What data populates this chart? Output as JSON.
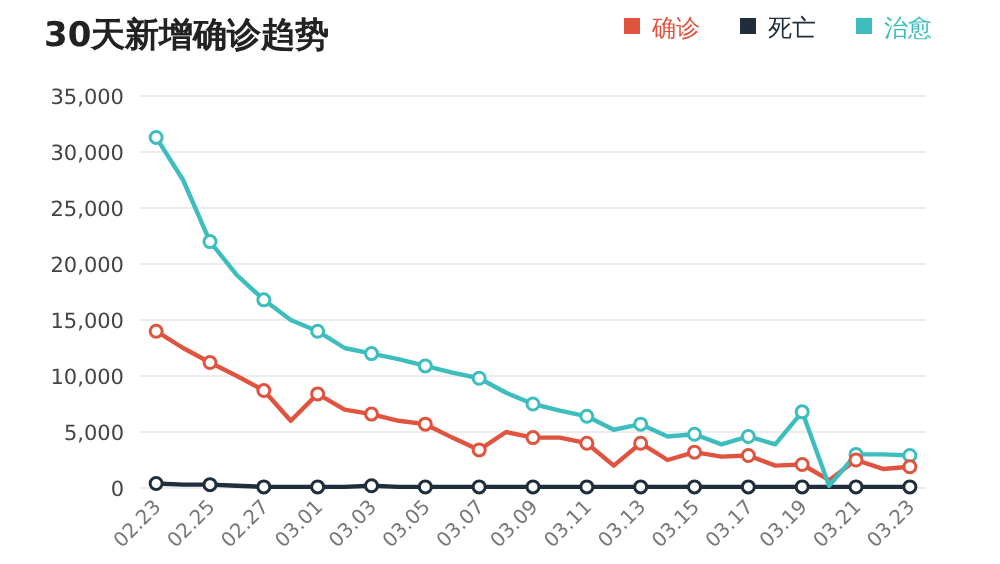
{
  "chart_data": {
    "type": "line",
    "title": "30天新增确诊趋势",
    "categories": [
      "02.23",
      null,
      "02.25",
      null,
      "02.27",
      null,
      "03.01",
      null,
      "03.03",
      null,
      "03.05",
      null,
      "03.07",
      null,
      "03.09",
      null,
      "03.11",
      null,
      "03.13",
      null,
      "03.15",
      null,
      "03.17",
      null,
      "03.19",
      null,
      "03.21",
      null,
      "03.23"
    ],
    "series": [
      {
        "name": "确诊",
        "color": "#e0533e",
        "values": [
          14000,
          12500,
          11200,
          10000,
          8700,
          6000,
          8400,
          7000,
          6600,
          6000,
          5700,
          4500,
          3400,
          5000,
          4500,
          4500,
          4000,
          2000,
          4000,
          2500,
          3200,
          2800,
          2900,
          2000,
          2100,
          700,
          2500,
          1700,
          1900
        ]
      },
      {
        "name": "死亡",
        "color": "#1f2d3d",
        "values": [
          400,
          300,
          300,
          200,
          100,
          100,
          100,
          100,
          200,
          100,
          100,
          100,
          100,
          100,
          100,
          100,
          100,
          100,
          100,
          100,
          100,
          100,
          100,
          100,
          100,
          100,
          100,
          100,
          100
        ]
      },
      {
        "name": "治愈",
        "color": "#3dbdbd",
        "values": [
          31300,
          27500,
          22000,
          19000,
          16800,
          15000,
          14000,
          12500,
          12000,
          11500,
          10900,
          10300,
          9800,
          8500,
          7500,
          6900,
          6400,
          5200,
          5700,
          4600,
          4800,
          3900,
          4600,
          3900,
          6800,
          200,
          3000,
          3000,
          2900
        ]
      }
    ],
    "ylim": [
      0,
      35000
    ],
    "yticks": [
      {
        "value": 0,
        "label": "0"
      },
      {
        "value": 5000,
        "label": "5,000"
      },
      {
        "value": 10000,
        "label": "10,000"
      },
      {
        "value": 15000,
        "label": "15,000"
      },
      {
        "value": 20000,
        "label": "20,000"
      },
      {
        "value": 25000,
        "label": "25,000"
      },
      {
        "value": 30000,
        "label": "30,000"
      },
      {
        "value": 35000,
        "label": "35,000"
      }
    ],
    "grid": "y",
    "legend": "top right",
    "marker": "circle",
    "line_style": "solid"
  }
}
